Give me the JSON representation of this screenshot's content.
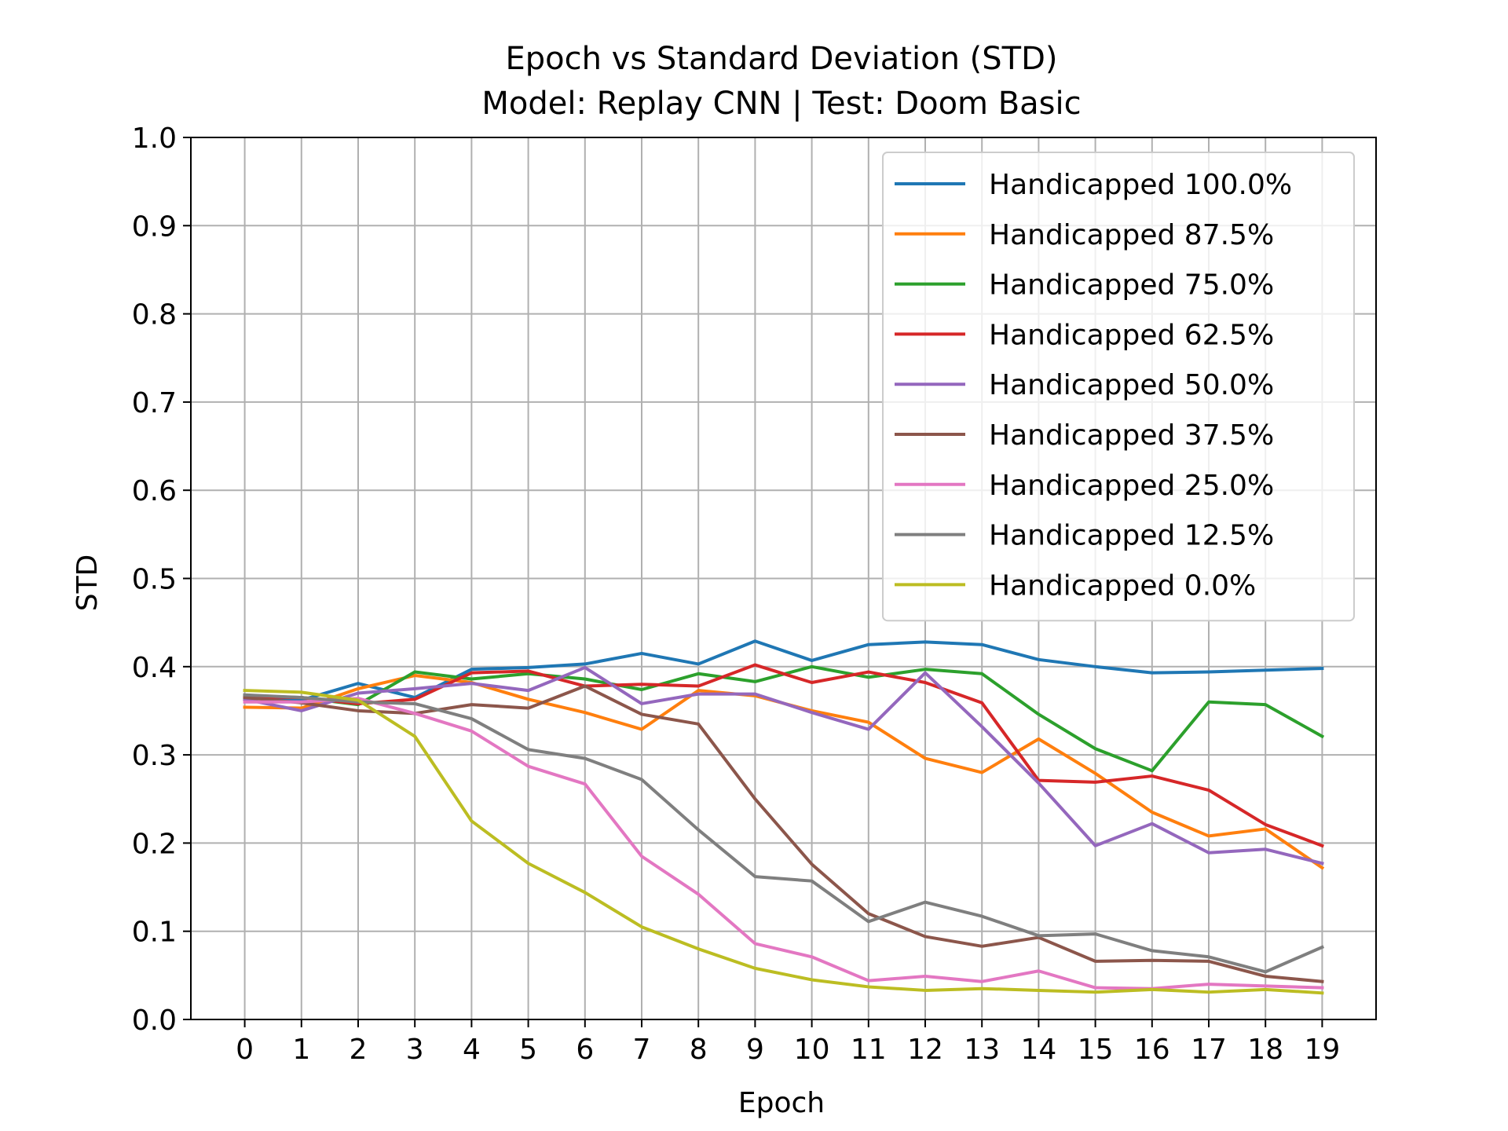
{
  "chart_data": {
    "type": "line",
    "title": "Epoch vs Standard Deviation (STD)",
    "subtitle": "Model: Replay CNN | Test: Doom Basic",
    "xlabel": "Epoch",
    "ylabel": "STD",
    "x": [
      0,
      1,
      2,
      3,
      4,
      5,
      6,
      7,
      8,
      9,
      10,
      11,
      12,
      13,
      14,
      15,
      16,
      17,
      18,
      19
    ],
    "xlim": [
      -0.95,
      19.95
    ],
    "ylim": [
      0.0,
      1.0
    ],
    "yticks": [
      0.0,
      0.1,
      0.2,
      0.3,
      0.4,
      0.5,
      0.6,
      0.7,
      0.8,
      0.9,
      1.0
    ],
    "grid": true,
    "legend_position": "top-right",
    "series": [
      {
        "name": "Handicapped 100.0%",
        "color": "#1f77b4",
        "values": [
          0.366,
          0.362,
          0.381,
          0.365,
          0.397,
          0.399,
          0.403,
          0.415,
          0.403,
          0.429,
          0.407,
          0.425,
          0.428,
          0.425,
          0.408,
          0.4,
          0.393,
          0.394,
          0.396,
          0.398
        ]
      },
      {
        "name": "Handicapped 87.5%",
        "color": "#ff7f0e",
        "values": [
          0.354,
          0.353,
          0.375,
          0.39,
          0.382,
          0.363,
          0.348,
          0.329,
          0.373,
          0.367,
          0.35,
          0.337,
          0.296,
          0.28,
          0.318,
          0.279,
          0.235,
          0.208,
          0.216,
          0.172
        ]
      },
      {
        "name": "Handicapped 75.0%",
        "color": "#2ca02c",
        "values": [
          0.367,
          0.365,
          0.357,
          0.394,
          0.386,
          0.392,
          0.386,
          0.374,
          0.392,
          0.383,
          0.4,
          0.388,
          0.397,
          0.392,
          0.346,
          0.307,
          0.282,
          0.36,
          0.357,
          0.321
        ]
      },
      {
        "name": "Handicapped 62.5%",
        "color": "#d62728",
        "values": [
          0.366,
          0.365,
          0.358,
          0.363,
          0.393,
          0.395,
          0.378,
          0.38,
          0.378,
          0.402,
          0.382,
          0.394,
          0.382,
          0.359,
          0.271,
          0.269,
          0.276,
          0.26,
          0.221,
          0.197
        ]
      },
      {
        "name": "Handicapped 50.0%",
        "color": "#9467bd",
        "values": [
          0.363,
          0.35,
          0.37,
          0.375,
          0.381,
          0.373,
          0.399,
          0.358,
          0.369,
          0.369,
          0.348,
          0.329,
          0.393,
          0.332,
          0.268,
          0.197,
          0.222,
          0.189,
          0.193,
          0.177
        ]
      },
      {
        "name": "Handicapped 37.5%",
        "color": "#8c564b",
        "values": [
          0.365,
          0.359,
          0.35,
          0.347,
          0.357,
          0.353,
          0.378,
          0.346,
          0.335,
          0.25,
          0.176,
          0.12,
          0.094,
          0.083,
          0.093,
          0.066,
          0.067,
          0.066,
          0.049,
          0.043
        ]
      },
      {
        "name": "Handicapped 25.0%",
        "color": "#e377c2",
        "values": [
          0.36,
          0.36,
          0.364,
          0.347,
          0.327,
          0.287,
          0.267,
          0.185,
          0.142,
          0.086,
          0.071,
          0.044,
          0.049,
          0.043,
          0.055,
          0.036,
          0.035,
          0.04,
          0.038,
          0.036
        ]
      },
      {
        "name": "Handicapped 12.5%",
        "color": "#7f7f7f",
        "values": [
          0.368,
          0.365,
          0.36,
          0.358,
          0.341,
          0.306,
          0.296,
          0.272,
          0.215,
          0.162,
          0.157,
          0.111,
          0.133,
          0.117,
          0.095,
          0.097,
          0.078,
          0.071,
          0.054,
          0.082
        ]
      },
      {
        "name": "Handicapped 0.0%",
        "color": "#bcbd22",
        "values": [
          0.373,
          0.371,
          0.362,
          0.321,
          0.225,
          0.177,
          0.144,
          0.105,
          0.08,
          0.058,
          0.045,
          0.037,
          0.033,
          0.035,
          0.033,
          0.031,
          0.034,
          0.031,
          0.034,
          0.03
        ]
      }
    ]
  }
}
